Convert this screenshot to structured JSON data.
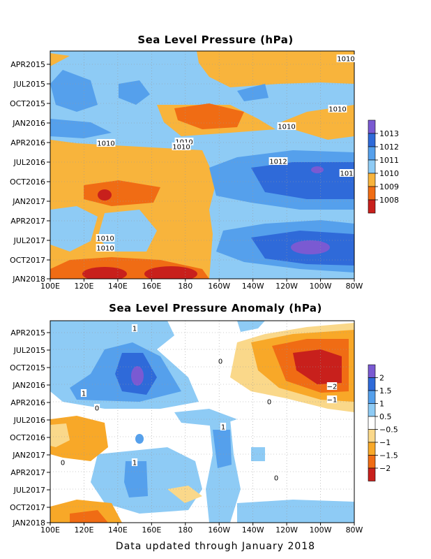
{
  "footer": "Data updated through January 2018",
  "colors": {
    "slp": [
      "#c8201c",
      "#f06c14",
      "#f8b43c",
      "#8ecbf5",
      "#55a0ec",
      "#2f6ad9",
      "#7a5ad2"
    ],
    "anom": [
      "#c8201c",
      "#f06c14",
      "#f8a828",
      "#fad88a",
      "#ffffff",
      "#8ecbf5",
      "#55a0ec",
      "#2f6ad9",
      "#7a5ad2"
    ]
  },
  "chart_data": [
    {
      "type": "heatmap",
      "title": "Sea Level Pressure (hPa)",
      "x_ticks": [
        "100E",
        "120E",
        "140E",
        "160E",
        "180",
        "160W",
        "140W",
        "120W",
        "100W",
        "80W"
      ],
      "y_ticks": [
        "APR2015",
        "JUL2015",
        "OCT2015",
        "JAN2016",
        "APR2016",
        "JUL2016",
        "OCT2016",
        "JAN2017",
        "APR2017",
        "JUL2017",
        "OCT2017",
        "JAN2018"
      ],
      "colorbar_labels": [
        "1013",
        "1012",
        "1011",
        "1010",
        "1009",
        "1008"
      ],
      "contour_labels": [
        "1010",
        "1010",
        "1010",
        "1010",
        "1010",
        "1010",
        "1012",
        "1010",
        "1010",
        "101"
      ]
    },
    {
      "type": "heatmap",
      "title": "Sea Level Pressure Anomaly (hPa)",
      "x_ticks": [
        "100E",
        "120E",
        "140E",
        "160E",
        "180",
        "160W",
        "140W",
        "120W",
        "100W",
        "80W"
      ],
      "y_ticks": [
        "APR2015",
        "JUL2015",
        "OCT2015",
        "JAN2016",
        "APR2016",
        "JUL2016",
        "OCT2016",
        "JAN2017",
        "APR2017",
        "JUL2017",
        "OCT2017",
        "JAN2018"
      ],
      "colorbar_labels": [
        "2",
        "1.5",
        "1",
        "0.5",
        "−0.5",
        "−1",
        "−1.5",
        "−2"
      ],
      "contour_labels": [
        "1",
        "0",
        "1",
        "0",
        "−2",
        "−1",
        "0",
        "1",
        "1",
        "0",
        "0"
      ]
    }
  ]
}
